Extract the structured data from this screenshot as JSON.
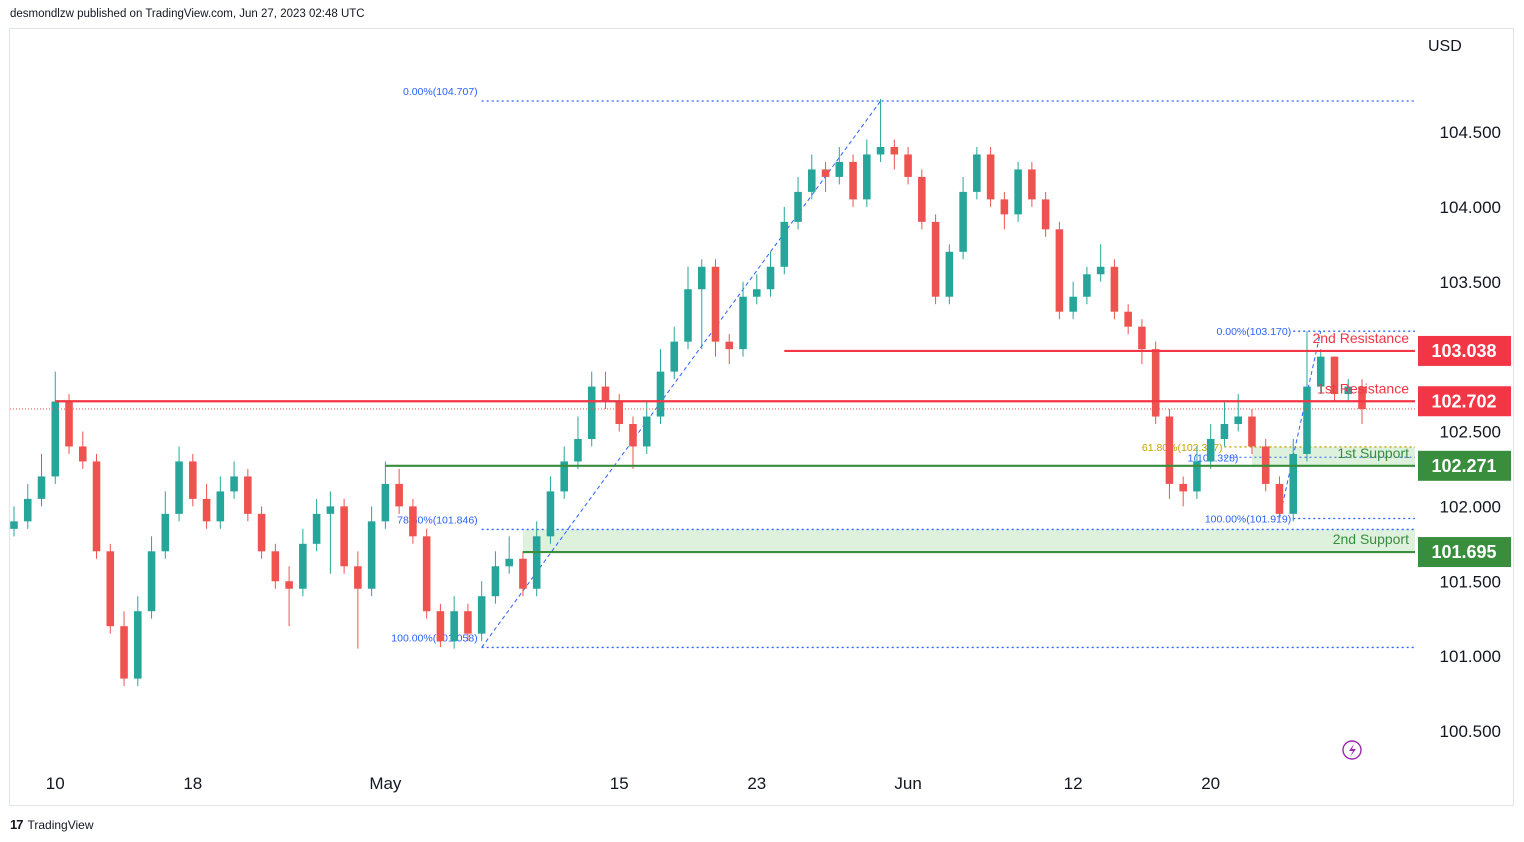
{
  "header": {
    "text": "desmondlzw published on TradingView.com, Jun 27, 2023 02:48 UTC"
  },
  "footer": {
    "logo_text": "TradingView"
  },
  "colors": {
    "up": "#26a69a",
    "down": "#ef5350",
    "resistance": "#f23645",
    "support": "#388e3c",
    "support_zone": "#ddf1dd",
    "fib": "#2962ff",
    "fib_gold": "#c9a300"
  },
  "chart_data": {
    "type": "candlestick",
    "currency_label": "USD",
    "y_ticks": [
      {
        "v": 104.5,
        "label": "104.500"
      },
      {
        "v": 104.0,
        "label": "104.000"
      },
      {
        "v": 103.5,
        "label": "103.500"
      },
      {
        "v": 102.5,
        "label": "102.500"
      },
      {
        "v": 102.0,
        "label": "102.000"
      },
      {
        "v": 101.5,
        "label": "101.500"
      },
      {
        "v": 101.0,
        "label": "101.000"
      },
      {
        "v": 100.5,
        "label": "100.500"
      }
    ],
    "x_ticks": [
      {
        "i": 3,
        "label": "10"
      },
      {
        "i": 13,
        "label": "18"
      },
      {
        "i": 27,
        "label": "May"
      },
      {
        "i": 44,
        "label": "15"
      },
      {
        "i": 54,
        "label": "23"
      },
      {
        "i": 65,
        "label": "Jun"
      },
      {
        "i": 77,
        "label": "12"
      },
      {
        "i": 87,
        "label": "20"
      }
    ],
    "levels": [
      {
        "name": "2nd Resistance",
        "value": 103.038,
        "label": "103.038",
        "kind": "resistance"
      },
      {
        "name": "1st Resistance",
        "value": 102.702,
        "label": "102.702",
        "kind": "resistance"
      },
      {
        "name": "1st Support",
        "value": 102.271,
        "label": "102.271",
        "kind": "support"
      },
      {
        "name": "2nd Support",
        "value": 101.695,
        "label": "101.695",
        "kind": "support"
      }
    ],
    "support_zone": [
      101.695,
      101.846
    ],
    "fib_labels": [
      {
        "text": "0.00%(104.707)",
        "value": 104.707
      },
      {
        "text": "78.60%(101.846)",
        "value": 101.846
      },
      {
        "text": "100.00%(101.058)",
        "value": 101.058
      },
      {
        "text": "0.00%(103.170)",
        "value": 103.17
      },
      {
        "text": "61.80%(102.397)",
        "value": 102.397
      },
      {
        "text": "1(102.328)",
        "value": 102.328
      },
      {
        "text": "100.00%(101.919)",
        "value": 101.919
      }
    ],
    "candles_close": [
      101.9,
      102.05,
      102.2,
      102.7,
      102.4,
      102.3,
      101.7,
      101.2,
      100.85,
      101.3,
      101.7,
      101.95,
      102.3,
      102.05,
      101.9,
      102.1,
      102.2,
      101.95,
      101.7,
      101.5,
      101.45,
      101.75,
      101.95,
      102.0,
      101.6,
      101.45,
      101.9,
      102.15,
      102.0,
      101.8,
      101.3,
      101.1,
      101.3,
      101.15,
      101.4,
      101.6,
      101.65,
      101.45,
      101.8,
      102.1,
      102.3,
      102.45,
      102.8,
      102.7,
      102.55,
      102.4,
      102.6,
      102.9,
      103.1,
      103.45,
      103.6,
      103.1,
      103.05,
      103.4,
      103.45,
      103.6,
      103.9,
      104.1,
      104.25,
      104.2,
      104.3,
      104.05,
      104.35,
      104.4,
      104.35,
      104.2,
      103.9,
      103.4,
      103.7,
      104.1,
      104.35,
      104.05,
      103.95,
      104.25,
      104.05,
      103.85,
      103.3,
      103.4,
      103.55,
      103.6,
      103.3,
      103.2,
      103.05,
      102.6,
      102.15,
      102.1,
      102.3,
      102.45,
      102.55,
      102.6,
      102.4,
      102.15,
      101.95,
      102.35,
      102.8,
      103.0,
      102.75,
      102.8,
      102.65
    ],
    "candles_open": [
      101.85,
      101.9,
      102.05,
      102.2,
      102.7,
      102.4,
      102.3,
      101.7,
      101.2,
      100.85,
      101.3,
      101.7,
      101.95,
      102.3,
      102.05,
      101.9,
      102.1,
      102.2,
      101.95,
      101.7,
      101.5,
      101.45,
      101.75,
      101.95,
      102.0,
      101.6,
      101.45,
      101.9,
      102.15,
      102.0,
      101.8,
      101.3,
      101.1,
      101.3,
      101.15,
      101.4,
      101.6,
      101.65,
      101.45,
      101.8,
      102.1,
      102.3,
      102.45,
      102.8,
      102.7,
      102.55,
      102.4,
      102.6,
      102.9,
      103.1,
      103.45,
      103.6,
      103.1,
      103.05,
      103.4,
      103.45,
      103.6,
      103.9,
      104.1,
      104.25,
      104.2,
      104.3,
      104.05,
      104.35,
      104.4,
      104.35,
      104.2,
      103.9,
      103.4,
      103.7,
      104.1,
      104.35,
      104.05,
      103.95,
      104.25,
      104.05,
      103.85,
      103.3,
      103.4,
      103.55,
      103.6,
      103.3,
      103.2,
      103.05,
      102.6,
      102.15,
      102.1,
      102.3,
      102.45,
      102.55,
      102.6,
      102.4,
      102.15,
      101.95,
      102.35,
      102.8,
      103.0,
      102.75,
      102.8
    ],
    "candles_high": [
      102.0,
      102.15,
      102.35,
      102.9,
      102.75,
      102.5,
      102.35,
      101.75,
      101.3,
      101.4,
      101.8,
      102.1,
      102.4,
      102.35,
      102.15,
      102.2,
      102.3,
      102.25,
      102.0,
      101.75,
      101.6,
      101.85,
      102.05,
      102.1,
      102.05,
      101.7,
      102.0,
      102.3,
      102.25,
      102.05,
      101.85,
      101.35,
      101.4,
      101.35,
      101.5,
      101.7,
      101.8,
      101.7,
      101.9,
      102.2,
      102.4,
      102.6,
      102.9,
      102.9,
      102.75,
      102.6,
      102.7,
      103.05,
      103.2,
      103.6,
      103.65,
      103.65,
      103.15,
      103.5,
      103.55,
      103.7,
      104.0,
      104.2,
      104.35,
      104.3,
      104.4,
      104.35,
      104.45,
      104.72,
      104.45,
      104.4,
      104.25,
      103.95,
      103.75,
      104.2,
      104.4,
      104.4,
      104.1,
      104.3,
      104.3,
      104.1,
      103.9,
      103.5,
      103.6,
      103.75,
      103.65,
      103.35,
      103.25,
      103.1,
      102.65,
      102.2,
      102.4,
      102.55,
      102.7,
      102.75,
      102.65,
      102.45,
      102.2,
      102.45,
      103.17,
      103.05,
      103.0,
      102.85,
      102.85
    ],
    "candles_low": [
      101.8,
      101.85,
      102.0,
      102.15,
      102.35,
      102.25,
      101.65,
      101.15,
      100.8,
      100.8,
      101.25,
      101.65,
      101.9,
      102.0,
      101.85,
      101.85,
      102.05,
      101.9,
      101.65,
      101.45,
      101.2,
      101.4,
      101.7,
      101.55,
      101.55,
      101.05,
      101.4,
      101.85,
      101.95,
      101.75,
      101.25,
      101.06,
      101.05,
      101.1,
      101.1,
      101.35,
      101.55,
      101.4,
      101.4,
      101.75,
      102.05,
      102.25,
      102.4,
      102.65,
      102.5,
      102.25,
      102.35,
      102.55,
      102.85,
      103.05,
      103.05,
      103.0,
      102.95,
      103.0,
      103.35,
      103.4,
      103.55,
      103.85,
      104.05,
      104.1,
      104.15,
      104.0,
      104.0,
      104.3,
      104.25,
      104.15,
      103.85,
      103.35,
      103.35,
      103.65,
      104.05,
      104.0,
      103.85,
      103.9,
      104.0,
      103.8,
      103.25,
      103.25,
      103.35,
      103.5,
      103.25,
      103.15,
      102.95,
      102.55,
      102.05,
      102.0,
      102.05,
      102.25,
      102.4,
      102.5,
      102.35,
      102.1,
      101.92,
      101.9,
      102.3,
      102.75,
      102.7,
      102.7,
      102.55
    ]
  }
}
